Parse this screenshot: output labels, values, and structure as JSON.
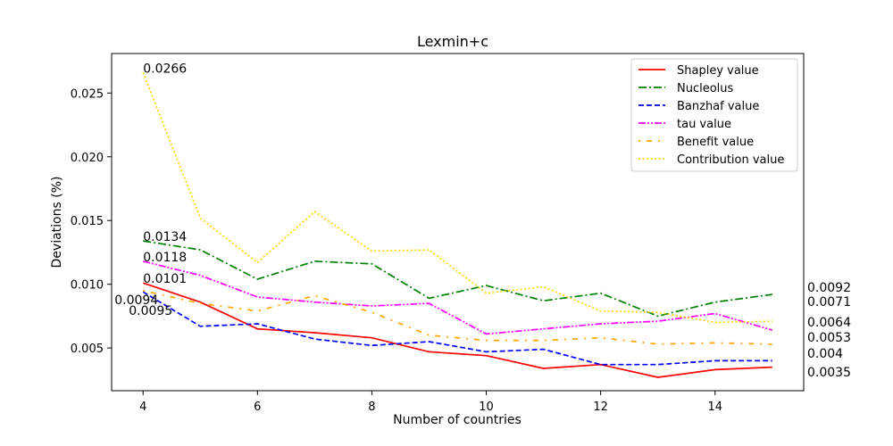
{
  "chart_data": {
    "type": "line",
    "title": "Lexmin+c",
    "xlabel": "Number of countries",
    "ylabel": "Deviations (%)",
    "xlim": [
      3.45,
      15.55
    ],
    "ylim": [
      0.00165,
      0.0281
    ],
    "xticks": [
      4,
      6,
      8,
      10,
      12,
      14
    ],
    "xtick_labels": [
      "4",
      "6",
      "8",
      "10",
      "12",
      "14"
    ],
    "yticks": [
      0.005,
      0.01,
      0.015,
      0.02,
      0.025
    ],
    "ytick_labels": [
      "0.005",
      "0.010",
      "0.015",
      "0.020",
      "0.025"
    ],
    "grid": false,
    "legend_position": "top-right",
    "x": [
      4,
      5,
      6,
      7,
      8,
      9,
      10,
      11,
      12,
      13,
      14,
      15
    ],
    "series": [
      {
        "name": "Shapley value",
        "color": "#ff0000",
        "style": "solid",
        "values": [
          0.0101,
          0.0086,
          0.0065,
          0.0062,
          0.0058,
          0.0047,
          0.0044,
          0.0034,
          0.0037,
          0.0027,
          0.0033,
          0.0035
        ]
      },
      {
        "name": "Nucleolus",
        "color": "#008000",
        "style": "dashdot",
        "values": [
          0.0134,
          0.0127,
          0.0104,
          0.0118,
          0.0116,
          0.0089,
          0.0099,
          0.0087,
          0.0093,
          0.0075,
          0.0086,
          0.0092
        ]
      },
      {
        "name": "Banzhaf value",
        "color": "#0000ff",
        "style": "dashed",
        "values": [
          0.0094,
          0.0067,
          0.0069,
          0.0057,
          0.0052,
          0.0055,
          0.0047,
          0.0049,
          0.0037,
          0.0037,
          0.004,
          0.004
        ]
      },
      {
        "name": "tau value",
        "color": "#ff00ff",
        "style": "dashdotdot",
        "values": [
          0.0118,
          0.0107,
          0.009,
          0.0086,
          0.0083,
          0.0085,
          0.0061,
          0.0065,
          0.0069,
          0.0071,
          0.0077,
          0.0064
        ]
      },
      {
        "name": "Benefit value",
        "color": "#ffa500",
        "style": "loosedashdot",
        "values": [
          0.0095,
          0.0085,
          0.0079,
          0.0091,
          0.0078,
          0.006,
          0.0056,
          0.0056,
          0.0058,
          0.0053,
          0.0054,
          0.0053
        ]
      },
      {
        "name": "Contribution value",
        "color": "#ffd700",
        "style": "dotted",
        "values": [
          0.0266,
          0.0152,
          0.0117,
          0.0157,
          0.0126,
          0.0127,
          0.0093,
          0.0098,
          0.0079,
          0.0078,
          0.007,
          0.0071
        ]
      }
    ],
    "annotations_start": [
      {
        "text": "0.0266",
        "x": 4,
        "y": 0.0266
      },
      {
        "text": "0.0134",
        "x": 4,
        "y": 0.0134
      },
      {
        "text": "0.0118",
        "x": 4,
        "y": 0.0118
      },
      {
        "text": "0.0101",
        "x": 4,
        "y": 0.0101
      },
      {
        "text": "0.0094",
        "x": 4,
        "y": 0.0094
      },
      {
        "text": "0.0095",
        "x": 4,
        "y": 0.0095
      }
    ],
    "annotations_end": [
      "0.0092",
      "0.0071",
      "0.0064",
      "0.0053",
      "0.004",
      "0.0035"
    ]
  }
}
